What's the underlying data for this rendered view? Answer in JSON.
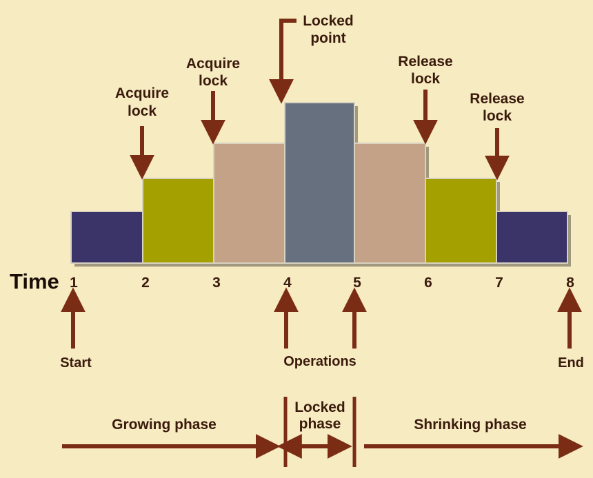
{
  "diagram": {
    "time_label": "Time",
    "time_ticks": [
      "1",
      "2",
      "3",
      "4",
      "5",
      "6",
      "7",
      "8"
    ],
    "blocks": [
      {
        "level": 1,
        "color": "#3b3468"
      },
      {
        "level": 2,
        "color": "#a3a000"
      },
      {
        "level": 3,
        "color": "#c3a287"
      },
      {
        "level": 4,
        "color": "#66707f"
      },
      {
        "level": 3,
        "color": "#c3a287"
      },
      {
        "level": 2,
        "color": "#a3a000"
      },
      {
        "level": 1,
        "color": "#3b3468"
      }
    ],
    "top_annotations": [
      {
        "lines": [
          "Acquire",
          "lock"
        ]
      },
      {
        "lines": [
          "Acquire",
          "lock"
        ]
      },
      {
        "lines": [
          "Locked",
          "point"
        ]
      },
      {
        "lines": [
          "Release",
          "lock"
        ]
      },
      {
        "lines": [
          "Release",
          "lock"
        ]
      }
    ],
    "bottom_labels": {
      "start": "Start",
      "operations": "Operations",
      "end": "End"
    },
    "phases": {
      "growing": "Growing phase",
      "locked_line1": "Locked",
      "locked_line2": "phase",
      "shrinking": "Shrinking phase"
    },
    "colors": {
      "background": "#f7ebc2",
      "arrow": "#7a2d14",
      "text": "#3a1a0c"
    }
  }
}
